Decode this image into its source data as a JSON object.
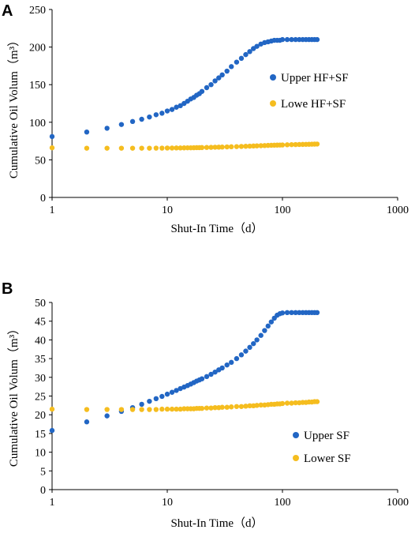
{
  "chart_data": [
    {
      "panel_label": "A",
      "type": "scatter",
      "xlabel": "Shut-In Time（d）",
      "ylabel": "Cumulative Oil Volum（m³）",
      "xscale": "log",
      "xlim": [
        1,
        1000
      ],
      "ylim": [
        0,
        250
      ],
      "xticks": [
        "1",
        "10",
        "100",
        "1000"
      ],
      "yticks": [
        "0",
        "50",
        "100",
        "150",
        "200",
        "250"
      ],
      "grid": false,
      "legend_position": "right",
      "series": [
        {
          "name": "Upper HF+SF",
          "color": "#2266c4",
          "x": [
            1,
            2,
            3,
            4,
            5,
            6,
            7,
            8,
            9,
            10,
            11,
            12,
            13,
            14,
            15,
            16,
            17,
            18,
            19,
            20,
            22,
            24,
            26,
            28,
            30,
            33,
            36,
            40,
            44,
            48,
            52,
            56,
            60,
            65,
            70,
            75,
            80,
            85,
            90,
            95,
            100,
            110,
            120,
            130,
            140,
            150,
            160,
            170,
            180,
            190,
            200
          ],
          "y": [
            81,
            87,
            92,
            97,
            101,
            104,
            107,
            110,
            112,
            115,
            117,
            120,
            122,
            125,
            128,
            131,
            133,
            136,
            138,
            141,
            146,
            150,
            155,
            159,
            163,
            168,
            174,
            180,
            185,
            190,
            194,
            198,
            201,
            204,
            206,
            207,
            208,
            209,
            209,
            209,
            210,
            210,
            210,
            210,
            210,
            210,
            210,
            210,
            210,
            210,
            210
          ]
        },
        {
          "name": "Lowe HF+SF",
          "color": "#f5bd1f",
          "x": [
            1,
            2,
            3,
            4,
            5,
            6,
            7,
            8,
            9,
            10,
            11,
            12,
            13,
            14,
            15,
            16,
            17,
            18,
            19,
            20,
            22,
            24,
            26,
            28,
            30,
            33,
            36,
            40,
            44,
            48,
            52,
            56,
            60,
            65,
            70,
            75,
            80,
            85,
            90,
            95,
            100,
            110,
            120,
            130,
            140,
            150,
            160,
            170,
            180,
            190,
            200
          ],
          "y": [
            66,
            65.5,
            65.5,
            65.5,
            65.5,
            65.5,
            65.5,
            65.6,
            65.6,
            65.7,
            65.7,
            65.8,
            65.8,
            65.9,
            66,
            66,
            66.1,
            66.2,
            66.2,
            66.3,
            66.5,
            66.6,
            66.8,
            66.9,
            67,
            67.2,
            67.4,
            67.6,
            67.8,
            68,
            68.2,
            68.4,
            68.6,
            68.8,
            69,
            69.2,
            69.4,
            69.5,
            69.6,
            69.7,
            69.8,
            70,
            70.2,
            70.3,
            70.4,
            70.5,
            70.6,
            70.7,
            70.8,
            70.9,
            71
          ]
        }
      ]
    },
    {
      "panel_label": "B",
      "type": "scatter",
      "xlabel": "Shut-In Time（d）",
      "ylabel": "Cumulative Oil Volum（m³）",
      "xscale": "log",
      "xlim": [
        1,
        1000
      ],
      "ylim": [
        0,
        50
      ],
      "xticks": [
        "1",
        "10",
        "100",
        "1000"
      ],
      "yticks": [
        "0",
        "5",
        "10",
        "15",
        "20",
        "25",
        "30",
        "35",
        "40",
        "45",
        "50"
      ],
      "grid": false,
      "legend_position": "bottom-right",
      "series": [
        {
          "name": "Upper SF",
          "color": "#2266c4",
          "x": [
            1,
            2,
            3,
            4,
            5,
            6,
            7,
            8,
            9,
            10,
            11,
            12,
            13,
            14,
            15,
            16,
            17,
            18,
            19,
            20,
            22,
            24,
            26,
            28,
            30,
            33,
            36,
            40,
            44,
            48,
            52,
            56,
            60,
            65,
            70,
            75,
            80,
            85,
            90,
            95,
            100,
            110,
            120,
            130,
            140,
            150,
            160,
            170,
            180,
            190,
            200
          ],
          "y": [
            15.8,
            18.1,
            19.7,
            20.9,
            21.9,
            22.8,
            23.6,
            24.3,
            24.9,
            25.5,
            26,
            26.5,
            27,
            27.4,
            27.8,
            28.2,
            28.6,
            29,
            29.3,
            29.6,
            30.2,
            30.8,
            31.4,
            32,
            32.5,
            33.3,
            34,
            35,
            36,
            37,
            38,
            39,
            40,
            41.2,
            42.5,
            43.7,
            44.8,
            45.8,
            46.6,
            47,
            47.2,
            47.3,
            47.3,
            47.3,
            47.3,
            47.3,
            47.3,
            47.3,
            47.3,
            47.3,
            47.3
          ]
        },
        {
          "name": "Lower SF",
          "color": "#f5bd1f",
          "x": [
            1,
            2,
            3,
            4,
            5,
            6,
            7,
            8,
            9,
            10,
            11,
            12,
            13,
            14,
            15,
            16,
            17,
            18,
            19,
            20,
            22,
            24,
            26,
            28,
            30,
            33,
            36,
            40,
            44,
            48,
            52,
            56,
            60,
            65,
            70,
            75,
            80,
            85,
            90,
            95,
            100,
            110,
            120,
            130,
            140,
            150,
            160,
            170,
            180,
            190,
            200
          ],
          "y": [
            21.5,
            21.4,
            21.4,
            21.4,
            21.4,
            21.4,
            21.4,
            21.4,
            21.5,
            21.5,
            21.5,
            21.5,
            21.5,
            21.6,
            21.6,
            21.6,
            21.6,
            21.7,
            21.7,
            21.7,
            21.8,
            21.8,
            21.9,
            21.9,
            22,
            22,
            22.1,
            22.2,
            22.2,
            22.3,
            22.4,
            22.4,
            22.5,
            22.6,
            22.6,
            22.7,
            22.8,
            22.8,
            22.9,
            22.9,
            23,
            23.1,
            23.1,
            23.2,
            23.2,
            23.3,
            23.3,
            23.4,
            23.4,
            23.5,
            23.5
          ]
        }
      ]
    }
  ]
}
